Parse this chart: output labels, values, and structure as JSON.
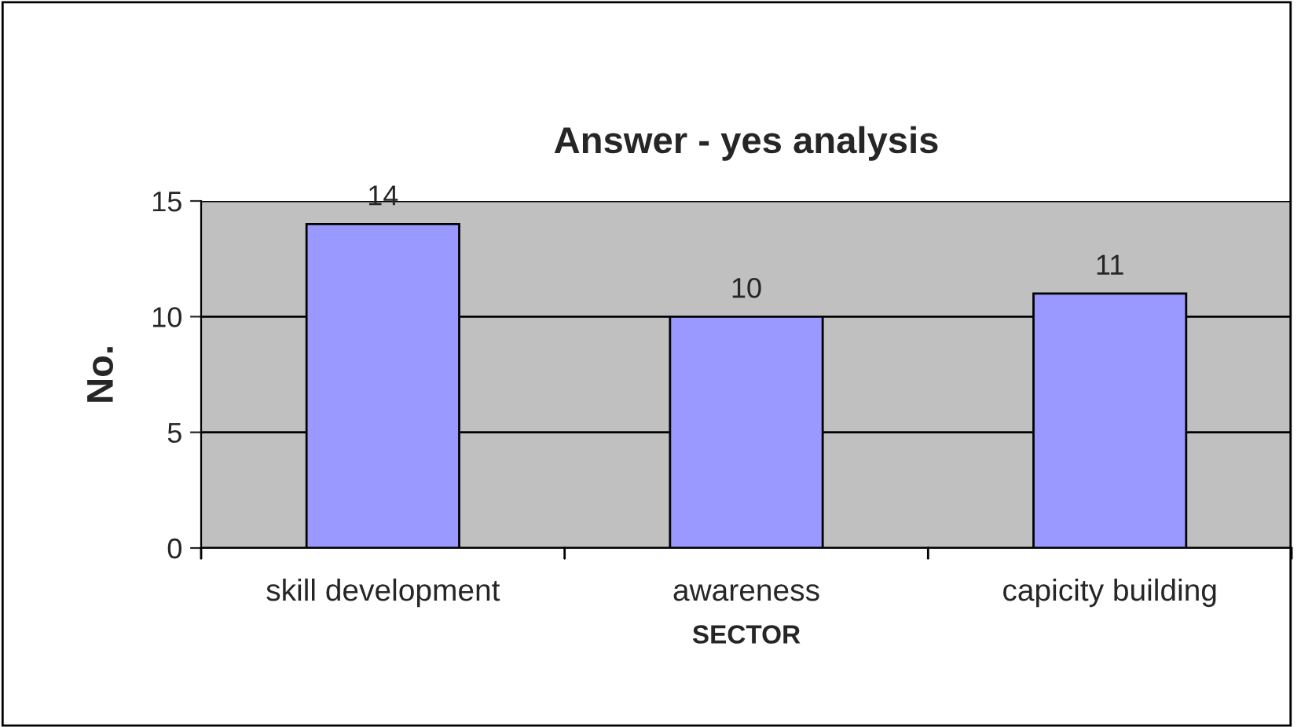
{
  "chart_data": {
    "type": "bar",
    "title": "Answer - yes analysis",
    "xlabel": "SECTOR",
    "ylabel": "No.",
    "categories": [
      "skill development",
      "awareness",
      "capicity building"
    ],
    "values": [
      14,
      10,
      11
    ],
    "color": "#9999ff",
    "ylim": [
      0,
      15
    ],
    "yticks": [
      0,
      5,
      10,
      15
    ],
    "grid": "y",
    "data_labels": true,
    "legend": false
  }
}
